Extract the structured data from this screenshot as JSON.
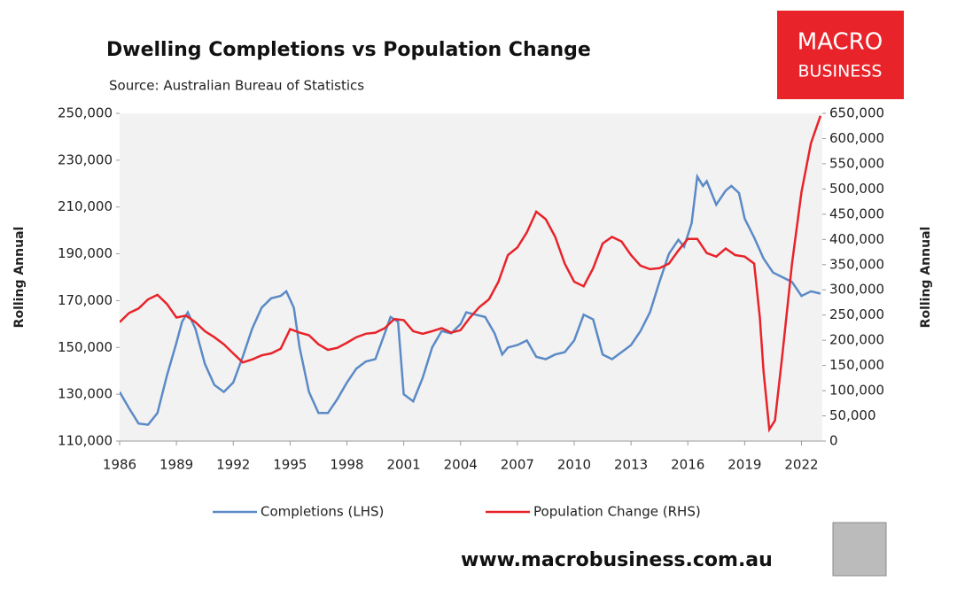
{
  "chart_data": {
    "type": "line",
    "title": "Dwelling Completions vs Population Change",
    "subtitle": "Source: Australian Bureau of Statistics",
    "logo_line1": "MACRO",
    "logo_line2": "BUSINESS",
    "footer": "www.macrobusiness.com.au",
    "ylabel": "Rolling Annual",
    "y2label": "Rolling Annual",
    "xlim": [
      1986,
      2023.1
    ],
    "xticks": [
      1986,
      1989,
      1992,
      1995,
      1998,
      2001,
      2004,
      2007,
      2010,
      2013,
      2016,
      2019,
      2022
    ],
    "ylim": [
      110000,
      250000
    ],
    "yticks": [
      {
        "value": 110000,
        "label": "110,000"
      },
      {
        "value": 130000,
        "label": "130,000"
      },
      {
        "value": 150000,
        "label": "150,000"
      },
      {
        "value": 170000,
        "label": "170,000"
      },
      {
        "value": 190000,
        "label": "190,000"
      },
      {
        "value": 210000,
        "label": "210,000"
      },
      {
        "value": 230000,
        "label": "230,000"
      },
      {
        "value": 250000,
        "label": "250,000"
      }
    ],
    "y2lim": [
      0,
      650000
    ],
    "y2ticks": [
      0,
      {
        "value": 50000,
        "label": "50,000"
      },
      {
        "value": 100000,
        "label": "100,000"
      },
      {
        "value": 150000,
        "label": "150,000"
      },
      {
        "value": 200000,
        "label": "200,000"
      },
      {
        "value": 250000,
        "label": "250,000"
      },
      {
        "value": 300000,
        "label": "300,000"
      },
      {
        "value": 350000,
        "label": "350,000"
      },
      {
        "value": 400000,
        "label": "400,000"
      },
      {
        "value": 450000,
        "label": "450,000"
      },
      {
        "value": 500000,
        "label": "500,000"
      },
      {
        "value": 550000,
        "label": "550,000"
      },
      {
        "value": 600000,
        "label": "600,000"
      },
      {
        "value": 650000,
        "label": "650,000"
      }
    ],
    "legend": "bottom",
    "series": [
      {
        "name": "Completions (LHS)",
        "color": "#5b8ac6",
        "axis": "y",
        "x": [
          1986.0,
          1986.5,
          1987.0,
          1987.5,
          1988.0,
          1988.5,
          1989.0,
          1989.3,
          1989.6,
          1990.0,
          1990.5,
          1991.0,
          1991.5,
          1992.0,
          1992.5,
          1993.0,
          1993.5,
          1994.0,
          1994.5,
          1994.8,
          1995.2,
          1995.5,
          1996.0,
          1996.5,
          1997.0,
          1997.5,
          1998.0,
          1998.5,
          1999.0,
          1999.5,
          2000.0,
          2000.3,
          2000.7,
          2001.0,
          2001.5,
          2002.0,
          2002.5,
          2003.0,
          2003.5,
          2004.0,
          2004.3,
          2004.8,
          2005.3,
          2005.8,
          2006.2,
          2006.5,
          2007.0,
          2007.5,
          2008.0,
          2008.5,
          2009.0,
          2009.5,
          2010.0,
          2010.5,
          2011.0,
          2011.5,
          2012.0,
          2012.5,
          2013.0,
          2013.5,
          2014.0,
          2014.5,
          2015.0,
          2015.5,
          2015.8,
          2016.2,
          2016.5,
          2016.8,
          2017.0,
          2017.5,
          2018.0,
          2018.3,
          2018.7,
          2019.0,
          2019.5,
          2020.0,
          2020.5,
          2021.0,
          2021.5,
          2022.0,
          2022.5,
          2023.0
        ],
        "values": [
          131000,
          124000,
          117500,
          117000,
          122000,
          138000,
          152000,
          161000,
          165000,
          158000,
          143000,
          134000,
          131000,
          135000,
          146000,
          158000,
          167000,
          171000,
          172000,
          174000,
          167000,
          150000,
          131000,
          122000,
          122000,
          128000,
          135000,
          141000,
          144000,
          145000,
          156000,
          163000,
          161000,
          130000,
          127000,
          137000,
          150000,
          157000,
          156000,
          160000,
          165000,
          164000,
          163000,
          156000,
          147000,
          150000,
          151000,
          153000,
          146000,
          145000,
          147000,
          148000,
          153000,
          164000,
          162000,
          147000,
          145000,
          148000,
          151000,
          157000,
          165000,
          178000,
          190000,
          196000,
          193000,
          203000,
          223000,
          219000,
          221000,
          211000,
          217000,
          219000,
          216000,
          205000,
          197000,
          188000,
          182000,
          180000,
          178000,
          172000,
          174000,
          173000
        ]
      },
      {
        "name": "Population Change (RHS)",
        "color": "#e8232a",
        "axis": "y2",
        "x": [
          1986.0,
          1986.5,
          1987.0,
          1987.5,
          1988.0,
          1988.5,
          1989.0,
          1989.5,
          1990.0,
          1990.5,
          1991.0,
          1991.5,
          1992.0,
          1992.5,
          1993.0,
          1993.5,
          1994.0,
          1994.5,
          1995.0,
          1995.5,
          1996.0,
          1996.5,
          1997.0,
          1997.5,
          1998.0,
          1998.5,
          1999.0,
          1999.5,
          2000.0,
          2000.5,
          2001.0,
          2001.5,
          2002.0,
          2002.5,
          2003.0,
          2003.5,
          2004.0,
          2004.5,
          2005.0,
          2005.5,
          2006.0,
          2006.5,
          2007.0,
          2007.5,
          2008.0,
          2008.5,
          2009.0,
          2009.5,
          2010.0,
          2010.5,
          2011.0,
          2011.5,
          2012.0,
          2012.5,
          2013.0,
          2013.5,
          2014.0,
          2014.5,
          2015.0,
          2015.5,
          2016.0,
          2016.5,
          2017.0,
          2017.5,
          2018.0,
          2018.5,
          2019.0,
          2019.5,
          2019.8,
          2020.0,
          2020.3,
          2020.6,
          2021.0,
          2021.5,
          2022.0,
          2022.5,
          2023.0
        ],
        "values": [
          236000,
          254000,
          263000,
          281000,
          290000,
          272000,
          245000,
          249000,
          236000,
          218000,
          206000,
          192000,
          174000,
          156000,
          162000,
          170000,
          174000,
          183000,
          222000,
          215000,
          210000,
          192000,
          181000,
          185000,
          195000,
          206000,
          213000,
          215000,
          224000,
          242000,
          240000,
          218000,
          213000,
          218000,
          224000,
          215000,
          220000,
          245000,
          266000,
          281000,
          316000,
          369000,
          384000,
          414000,
          455000,
          440000,
          405000,
          352000,
          316000,
          307000,
          343000,
          392000,
          405000,
          396000,
          369000,
          348000,
          341000,
          343000,
          352000,
          378000,
          401000,
          401000,
          373000,
          366000,
          382000,
          369000,
          366000,
          352000,
          245000,
          138000,
          23000,
          41000,
          174000,
          352000,
          494000,
          591000,
          645000
        ]
      }
    ]
  }
}
